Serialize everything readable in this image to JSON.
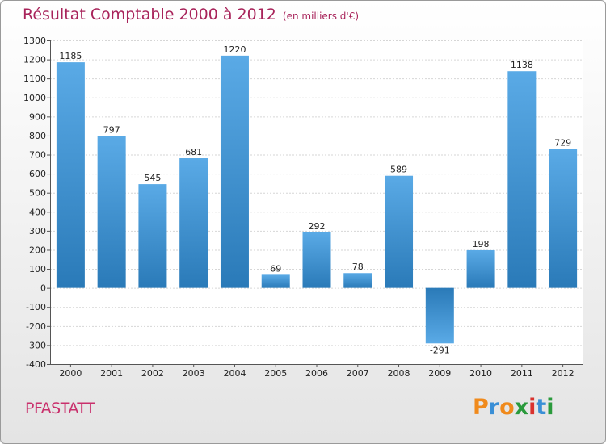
{
  "title": "Résultat Comptable 2000 à 2012",
  "subtitle": "(en milliers d'€)",
  "city": "PFASTATT",
  "logo": {
    "letters": [
      "P",
      "r",
      "o",
      "x",
      "i",
      "t",
      "i"
    ],
    "colors": [
      "#f08a1c",
      "#3a8fd6",
      "#f08a1c",
      "#2a9a3c",
      "#d9322e",
      "#3a8fd6",
      "#2a9a3c"
    ]
  },
  "colors": {
    "bar_top": "#5aaae6",
    "bar_bottom": "#2a7ab8",
    "title": "#a8235a"
  },
  "chart_data": {
    "type": "bar",
    "title": "Résultat Comptable 2000 à 2012",
    "ylabel": "en milliers d'€",
    "categories": [
      "2000",
      "2001",
      "2002",
      "2003",
      "2004",
      "2005",
      "2006",
      "2007",
      "2008",
      "2009",
      "2010",
      "2011",
      "2012"
    ],
    "values": [
      1185,
      797,
      545,
      681,
      1220,
      69,
      292,
      78,
      589,
      -291,
      198,
      1138,
      729
    ],
    "ylim": [
      -400,
      1300
    ],
    "yticks": [
      -400,
      -300,
      -200,
      -100,
      0,
      100,
      200,
      300,
      400,
      500,
      600,
      700,
      800,
      900,
      1000,
      1100,
      1200,
      1300
    ],
    "grid": true
  }
}
